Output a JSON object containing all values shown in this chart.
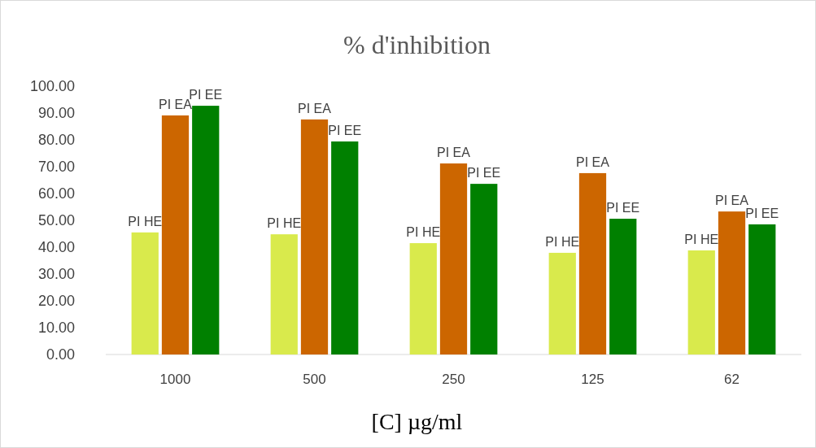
{
  "chart_data": {
    "type": "bar",
    "title": "% d'inhibition",
    "xlabel": "[C] µg/ml",
    "categories": [
      "1000",
      "500",
      "250",
      "125",
      "62"
    ],
    "series": [
      {
        "name": "PI HE",
        "color": "#d9ea4c",
        "values": [
          45.5,
          44.8,
          41.5,
          37.9,
          38.8
        ]
      },
      {
        "name": "PI EA",
        "color": "#cc6600",
        "values": [
          89.1,
          87.6,
          71.2,
          67.6,
          53.3
        ]
      },
      {
        "name": "PI EE",
        "color": "#008000",
        "values": [
          92.7,
          79.4,
          63.6,
          50.6,
          48.5
        ]
      }
    ],
    "ylim": [
      0,
      100
    ],
    "yticks": [
      {
        "value": 0,
        "label": "0.00"
      },
      {
        "value": 10,
        "label": "10.00"
      },
      {
        "value": 20,
        "label": "20.00"
      },
      {
        "value": 30,
        "label": "30.00"
      },
      {
        "value": 40,
        "label": "40.00"
      },
      {
        "value": 50,
        "label": "50.00"
      },
      {
        "value": 60,
        "label": "60.00"
      },
      {
        "value": 70,
        "label": "70.00"
      },
      {
        "value": 80,
        "label": "80.00"
      },
      {
        "value": 90,
        "label": "90.00"
      },
      {
        "value": 100,
        "label": "100.00"
      }
    ],
    "grid": false
  }
}
